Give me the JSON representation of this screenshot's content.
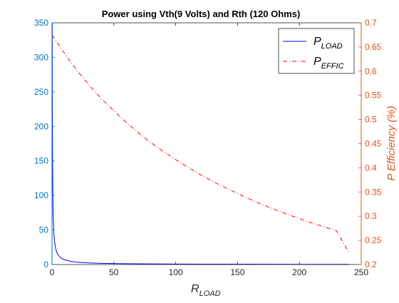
{
  "chart_data": {
    "type": "line",
    "title": "Power using Vth(9 Volts) and Rth (120 Ohms)",
    "xlabel": {
      "main": "R",
      "sub": "LOAD"
    },
    "ylabel_left": "",
    "ylabel_right": "P Efficiency (%)",
    "xlim": [
      0,
      250
    ],
    "ylim_left": [
      0,
      350
    ],
    "ylim_right": [
      0.2,
      0.7
    ],
    "x_ticks": [
      0,
      50,
      100,
      150,
      200,
      250
    ],
    "y_left_ticks": [
      0,
      50,
      100,
      150,
      200,
      250,
      300,
      350
    ],
    "y_right_ticks": [
      0.2,
      0.25,
      0.3,
      0.35,
      0.4,
      0.45,
      0.5,
      0.55,
      0.6,
      0.65,
      0.7
    ],
    "grid": false,
    "legend_position": "top-right",
    "colors": {
      "left_axis": "#0072BD",
      "right_axis": "#D95319",
      "p_load": "#0000ff",
      "p_effic": "#ff0000"
    },
    "series": [
      {
        "name": "P_LOAD",
        "legend_main": "P",
        "legend_sub": "LOAD",
        "axis": "left",
        "style": "solid",
        "color": "#0000ff",
        "x": [
          0.2,
          0.3,
          0.5,
          0.75,
          1,
          1.5,
          2,
          3,
          4,
          5,
          7,
          10,
          15,
          20,
          30,
          40,
          60,
          80,
          100,
          120,
          150,
          180,
          210,
          240
        ],
        "y": [
          340,
          227,
          136,
          91,
          68,
          45.3,
          34,
          22.7,
          17,
          13.6,
          9.7,
          6.8,
          4.5,
          3.4,
          2.3,
          1.7,
          1.1,
          0.85,
          0.68,
          0.57,
          0.45,
          0.38,
          0.32,
          0.28
        ]
      },
      {
        "name": "P_EFFIC",
        "legend_main": "P",
        "legend_sub": "EFFIC",
        "axis": "right",
        "style": "dashdot",
        "color": "#ff0000",
        "x": [
          0,
          10,
          20,
          30,
          40,
          50,
          60,
          70,
          80,
          90,
          100,
          110,
          120,
          130,
          140,
          150,
          160,
          170,
          180,
          190,
          200,
          210,
          220,
          230,
          240
        ],
        "y": [
          0.675,
          0.637,
          0.602,
          0.571,
          0.543,
          0.518,
          0.494,
          0.472,
          0.452,
          0.434,
          0.417,
          0.401,
          0.386,
          0.372,
          0.359,
          0.347,
          0.335,
          0.324,
          0.314,
          0.304,
          0.295,
          0.286,
          0.278,
          0.27,
          0.225
        ]
      }
    ]
  }
}
